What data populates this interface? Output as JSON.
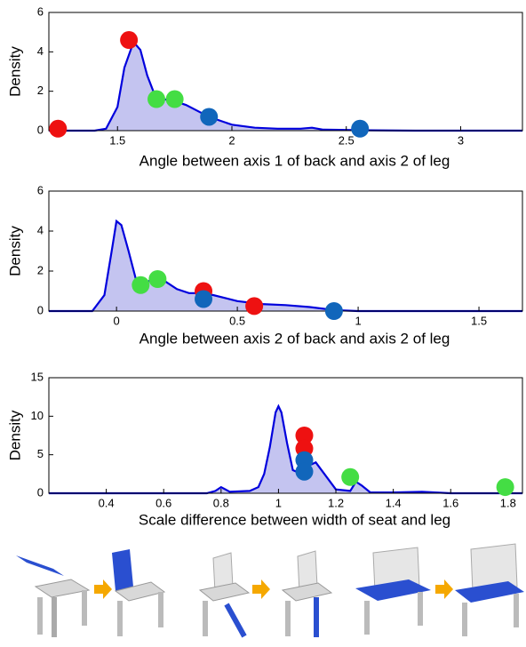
{
  "chart_data": [
    {
      "type": "density",
      "y_label": "Density",
      "x_label": "Angle between axis 1 of back and axis 2 of leg",
      "xlim": [
        1.2,
        3.27
      ],
      "ylim": [
        0,
        6
      ],
      "xticks": [
        1.5,
        2,
        2.5,
        3
      ],
      "yticks": [
        0,
        2,
        4,
        6
      ],
      "line_color": "#0000dd",
      "fill_color": "#c4c4f0",
      "x": [
        1.2,
        1.4,
        1.45,
        1.5,
        1.53,
        1.57,
        1.6,
        1.63,
        1.66,
        1.7,
        1.75,
        1.8,
        1.85,
        1.9,
        2.0,
        2.1,
        2.2,
        2.3,
        2.35,
        2.4,
        2.6,
        2.8,
        3.0,
        3.27
      ],
      "values": [
        0,
        0,
        0.1,
        1.2,
        3.2,
        4.5,
        4.1,
        2.8,
        1.9,
        1.6,
        1.5,
        1.3,
        1.0,
        0.7,
        0.3,
        0.15,
        0.1,
        0.1,
        0.15,
        0.05,
        0.02,
        0,
        0,
        0
      ],
      "points": [
        {
          "color": "#ee1111",
          "x": 1.24,
          "y": 0.1
        },
        {
          "color": "#ee1111",
          "x": 1.55,
          "y": 4.6
        },
        {
          "color": "#44dd44",
          "x": 1.67,
          "y": 1.6
        },
        {
          "color": "#44dd44",
          "x": 1.75,
          "y": 1.6
        },
        {
          "color": "#1166bb",
          "x": 1.9,
          "y": 0.7
        },
        {
          "color": "#1166bb",
          "x": 2.56,
          "y": 0.1
        }
      ]
    },
    {
      "type": "density",
      "y_label": "Density",
      "x_label": "Angle between axis 2 of back and axis 2 of leg",
      "xlim": [
        -0.28,
        1.68
      ],
      "ylim": [
        0,
        6
      ],
      "xticks": [
        0,
        0.5,
        1,
        1.5
      ],
      "yticks": [
        0,
        2,
        4,
        6
      ],
      "line_color": "#0000dd",
      "fill_color": "#c4c4f0",
      "x": [
        -0.28,
        -0.1,
        -0.05,
        -0.02,
        0,
        0.02,
        0.05,
        0.08,
        0.1,
        0.15,
        0.2,
        0.25,
        0.3,
        0.35,
        0.4,
        0.5,
        0.6,
        0.7,
        0.8,
        0.9,
        1.0,
        1.2,
        1.68
      ],
      "values": [
        0,
        0,
        0.8,
        3.0,
        4.5,
        4.3,
        3.0,
        1.6,
        1.3,
        1.6,
        1.5,
        1.1,
        0.9,
        0.9,
        0.8,
        0.5,
        0.35,
        0.3,
        0.2,
        0.05,
        0,
        0,
        0
      ],
      "points": [
        {
          "color": "#44dd44",
          "x": 0.1,
          "y": 1.3
        },
        {
          "color": "#44dd44",
          "x": 0.17,
          "y": 1.6
        },
        {
          "color": "#ee1111",
          "x": 0.36,
          "y": 1.0
        },
        {
          "color": "#ee1111",
          "x": 0.57,
          "y": 0.25
        },
        {
          "color": "#1166bb",
          "x": 0.36,
          "y": 0.6
        },
        {
          "color": "#1166bb",
          "x": 0.9,
          "y": 0.0
        }
      ]
    },
    {
      "type": "density",
      "y_label": "Density",
      "x_label": "Scale difference between width of seat and leg",
      "xlim": [
        0.2,
        1.85
      ],
      "ylim": [
        0,
        15
      ],
      "xticks": [
        0.4,
        0.6,
        0.8,
        1,
        1.2,
        1.4,
        1.6,
        1.8
      ],
      "yticks": [
        0,
        5,
        10,
        15
      ],
      "line_color": "#0000dd",
      "fill_color": "#c4c4f0",
      "x": [
        0.2,
        0.75,
        0.78,
        0.8,
        0.83,
        0.9,
        0.93,
        0.95,
        0.97,
        0.99,
        1.0,
        1.01,
        1.03,
        1.05,
        1.08,
        1.1,
        1.13,
        1.16,
        1.2,
        1.25,
        1.27,
        1.29,
        1.32,
        1.4,
        1.5,
        1.6,
        1.85
      ],
      "values": [
        0,
        0,
        0.3,
        0.8,
        0.2,
        0.3,
        0.8,
        2.5,
        6,
        10.5,
        11.3,
        10.5,
        6.5,
        3,
        2.5,
        3.5,
        4,
        2.5,
        0.5,
        0.3,
        1.5,
        1.0,
        0.1,
        0.1,
        0.2,
        0,
        0
      ],
      "points": [
        {
          "color": "#ee1111",
          "x": 1.09,
          "y": 7.5
        },
        {
          "color": "#ee1111",
          "x": 1.09,
          "y": 5.8
        },
        {
          "color": "#1166bb",
          "x": 1.09,
          "y": 4.3
        },
        {
          "color": "#1166bb",
          "x": 1.09,
          "y": 2.8
        },
        {
          "color": "#44dd44",
          "x": 1.25,
          "y": 2.1
        },
        {
          "color": "#44dd44",
          "x": 1.79,
          "y": 0.8
        }
      ]
    }
  ]
}
